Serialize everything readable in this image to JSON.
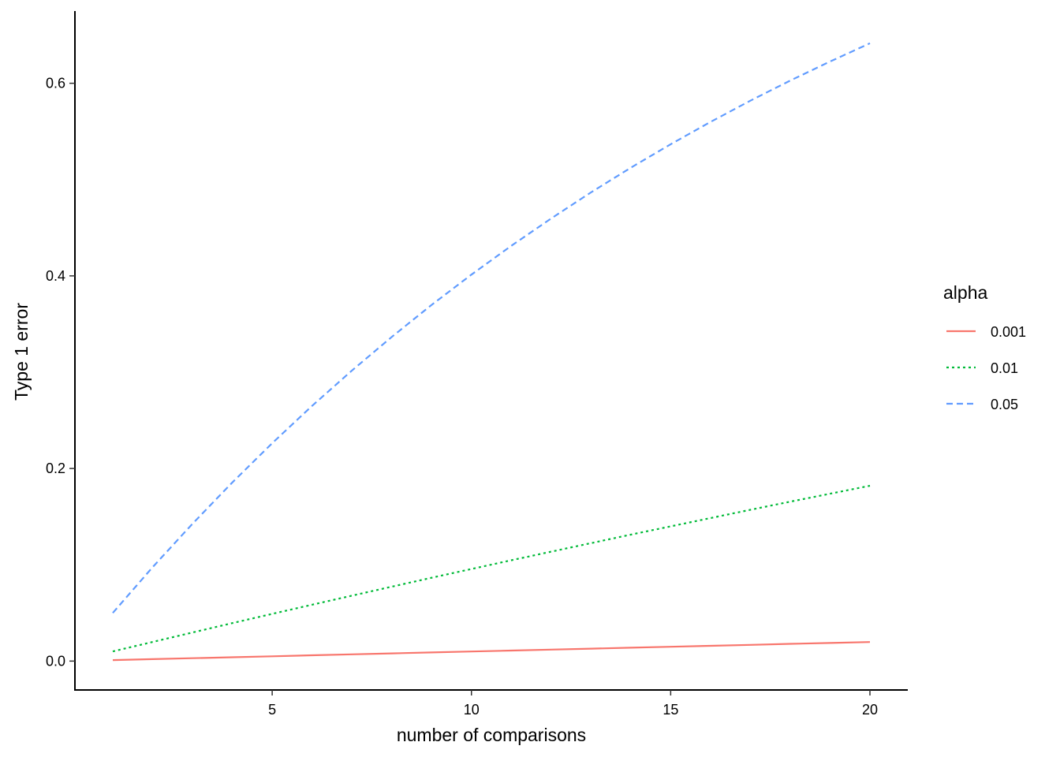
{
  "chart_data": {
    "type": "line",
    "title": "",
    "xlabel": "number of comparisons",
    "ylabel": "Type 1 error",
    "xlim": [
      0.05,
      20.95
    ],
    "ylim": [
      -0.03,
      0.675
    ],
    "xticks": [
      5,
      10,
      15,
      20
    ],
    "yticks": [
      0.0,
      0.2,
      0.4,
      0.6
    ],
    "xtick_labels": [
      "5",
      "10",
      "15",
      "20"
    ],
    "ytick_labels": [
      "0.0",
      "0.2",
      "0.4",
      "0.6"
    ],
    "grid": false,
    "legend": {
      "title": "alpha",
      "placement": "right"
    },
    "x": [
      1,
      2,
      3,
      4,
      5,
      6,
      7,
      8,
      9,
      10,
      11,
      12,
      13,
      14,
      15,
      16,
      17,
      18,
      19,
      20
    ],
    "series": [
      {
        "name": "0.001",
        "color": "#F8766D",
        "dash": "solid",
        "values": [
          0.001,
          0.002,
          0.003,
          0.004,
          0.005,
          0.006,
          0.007,
          0.008,
          0.009,
          0.00996,
          0.01095,
          0.01194,
          0.01292,
          0.01391,
          0.0149,
          0.01589,
          0.01687,
          0.01786,
          0.01884,
          0.01982
        ]
      },
      {
        "name": "0.01",
        "color": "#00BA38",
        "dash": "dotted",
        "values": [
          0.01,
          0.0199,
          0.0297,
          0.0394,
          0.049,
          0.0585,
          0.0679,
          0.0773,
          0.0865,
          0.0956,
          0.1047,
          0.1136,
          0.1225,
          0.1313,
          0.1399,
          0.1485,
          0.1571,
          0.1655,
          0.1738,
          0.1821
        ]
      },
      {
        "name": "0.05",
        "color": "#619CFF",
        "dash": "dashed",
        "values": [
          0.05,
          0.0975,
          0.1426,
          0.1855,
          0.2262,
          0.2649,
          0.3017,
          0.3366,
          0.3698,
          0.4013,
          0.4312,
          0.4596,
          0.4867,
          0.5123,
          0.5367,
          0.5599,
          0.5819,
          0.6028,
          0.6226,
          0.6415
        ]
      }
    ]
  }
}
